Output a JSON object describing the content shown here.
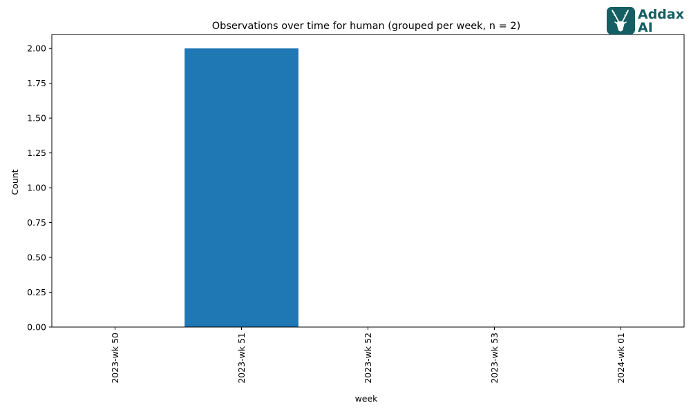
{
  "chart_data": {
    "type": "bar",
    "title": "Observations over time for human (grouped per week, n = 2)",
    "xlabel": "week",
    "ylabel": "Count",
    "categories": [
      "2023-wk 50",
      "2023-wk 51",
      "2023-wk 52",
      "2023-wk 53",
      "2024-wk 01"
    ],
    "values": [
      0,
      2,
      0,
      0,
      0
    ],
    "ylim": [
      0,
      2.1
    ],
    "yticks": [
      0.0,
      0.25,
      0.5,
      0.75,
      1.0,
      1.25,
      1.5,
      1.75,
      2.0
    ],
    "ytick_labels": [
      "0.00",
      "0.25",
      "0.50",
      "0.75",
      "1.00",
      "1.25",
      "1.50",
      "1.75",
      "2.00"
    ],
    "bar_color": "#1f77b4",
    "grid": false,
    "legend": "none"
  },
  "logo": {
    "line1": "Addax",
    "line2": "AI",
    "color": "#155e63",
    "icon": "antelope-head-icon"
  }
}
